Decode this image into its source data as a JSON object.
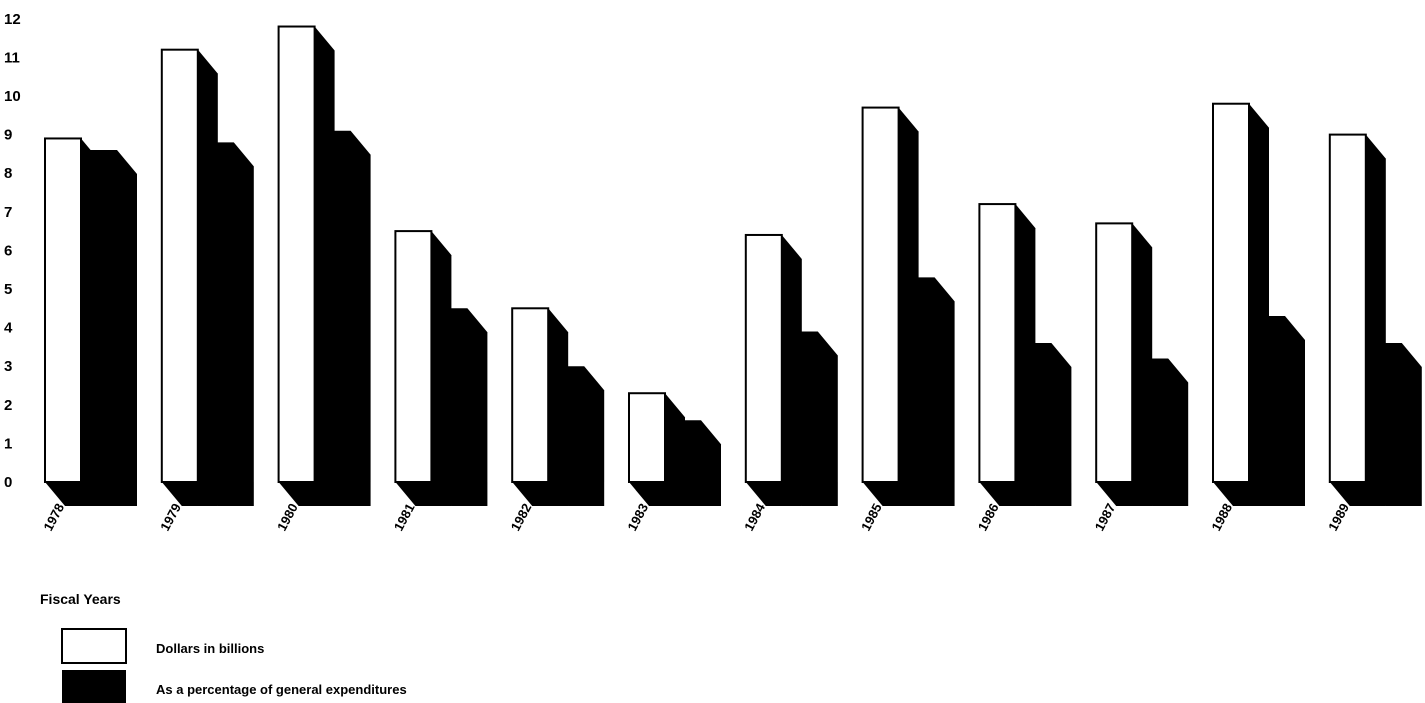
{
  "chart_data": {
    "type": "bar",
    "title": "",
    "xlabel": "Fiscal Years",
    "ylabel": "",
    "ylim": [
      0,
      12
    ],
    "yticks": [
      0,
      1,
      2,
      3,
      4,
      5,
      6,
      7,
      8,
      9,
      10,
      11,
      12
    ],
    "categories": [
      "1978",
      "1979",
      "1980",
      "1981",
      "1982",
      "1983",
      "1984",
      "1985",
      "1986",
      "1987",
      "1988",
      "1989"
    ],
    "series": [
      {
        "name": "Dollars in billions",
        "color": "#ffffff",
        "values": [
          8.9,
          11.2,
          11.8,
          6.5,
          4.5,
          2.3,
          6.4,
          9.7,
          7.2,
          6.7,
          9.8,
          9.0
        ]
      },
      {
        "name": "As a percentage of general expenditures",
        "color": "#000000",
        "values": [
          8.6,
          8.8,
          9.1,
          4.5,
          3.0,
          1.6,
          3.9,
          5.3,
          3.6,
          3.2,
          4.3,
          3.6
        ]
      }
    ],
    "grid": false,
    "legend_position": "bottom-left"
  }
}
